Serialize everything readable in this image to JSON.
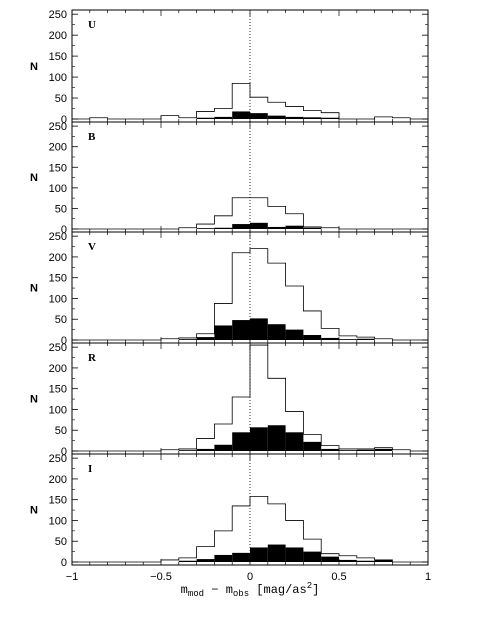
{
  "figure": {
    "y_axis_label": "N",
    "x_label": {
      "m1": "m",
      "sub1": "mod",
      "minus": " − ",
      "m2": "m",
      "sub2": "obs",
      "bracket": " [mag/as",
      "sup": "2",
      "close": "]"
    },
    "x_tick_labels": [
      "−1",
      "−0.5",
      "0",
      "0.5",
      "1"
    ],
    "y_tick_labels": [
      "0",
      "50",
      "100",
      "150",
      "200",
      "250"
    ]
  },
  "chart_data": [
    {
      "type": "bar",
      "label": "U",
      "xlim": [
        -1,
        1
      ],
      "ylim": [
        0,
        260
      ],
      "bin_width": 0.1,
      "bin_starts": [
        -1.0,
        -0.9,
        -0.8,
        -0.7,
        -0.6,
        -0.5,
        -0.4,
        -0.3,
        -0.2,
        -0.1,
        0.0,
        0.1,
        0.2,
        0.3,
        0.4,
        0.5,
        0.6,
        0.7,
        0.8,
        0.9
      ],
      "series": [
        {
          "style": "outline",
          "values": [
            0,
            3,
            0,
            0,
            0,
            8,
            3,
            18,
            25,
            85,
            52,
            40,
            30,
            20,
            15,
            0,
            0,
            5,
            3,
            0
          ]
        },
        {
          "style": "filled",
          "values": [
            0,
            0,
            0,
            0,
            0,
            0,
            0,
            3,
            5,
            18,
            14,
            8,
            5,
            4,
            3,
            0,
            0,
            0,
            0,
            0
          ]
        }
      ],
      "reference_line_x": 0
    },
    {
      "type": "bar",
      "label": "B",
      "xlim": [
        -1,
        1
      ],
      "ylim": [
        0,
        260
      ],
      "bin_width": 0.1,
      "bin_starts": [
        -1.0,
        -0.9,
        -0.8,
        -0.7,
        -0.6,
        -0.5,
        -0.4,
        -0.3,
        -0.2,
        -0.1,
        0.0,
        0.1,
        0.2,
        0.3,
        0.4,
        0.5,
        0.6,
        0.7,
        0.8,
        0.9
      ],
      "series": [
        {
          "style": "outline",
          "values": [
            0,
            0,
            0,
            0,
            0,
            0,
            3,
            12,
            32,
            76,
            76,
            55,
            37,
            5,
            3,
            0,
            0,
            0,
            0,
            0
          ]
        },
        {
          "style": "filled",
          "values": [
            0,
            0,
            0,
            0,
            0,
            0,
            0,
            2,
            3,
            12,
            15,
            5,
            8,
            3,
            0,
            0,
            0,
            0,
            0,
            0
          ]
        }
      ],
      "reference_line_x": 0
    },
    {
      "type": "bar",
      "label": "V",
      "xlim": [
        -1,
        1
      ],
      "ylim": [
        0,
        260
      ],
      "bin_width": 0.1,
      "bin_starts": [
        -1.0,
        -0.9,
        -0.8,
        -0.7,
        -0.6,
        -0.5,
        -0.4,
        -0.3,
        -0.2,
        -0.1,
        0.0,
        0.1,
        0.2,
        0.3,
        0.4,
        0.5,
        0.6,
        0.7,
        0.8,
        0.9
      ],
      "series": [
        {
          "style": "outline",
          "values": [
            0,
            0,
            0,
            0,
            0,
            3,
            5,
            15,
            88,
            210,
            220,
            185,
            130,
            70,
            28,
            10,
            7,
            3,
            0,
            0
          ]
        },
        {
          "style": "filled",
          "values": [
            0,
            0,
            0,
            0,
            0,
            0,
            2,
            7,
            35,
            48,
            52,
            38,
            25,
            12,
            5,
            2,
            3,
            0,
            0,
            0
          ]
        }
      ],
      "reference_line_x": 0
    },
    {
      "type": "bar",
      "label": "R",
      "xlim": [
        -1,
        1
      ],
      "ylim": [
        0,
        260
      ],
      "bin_width": 0.1,
      "bin_starts": [
        -1.0,
        -0.9,
        -0.8,
        -0.7,
        -0.6,
        -0.5,
        -0.4,
        -0.3,
        -0.2,
        -0.1,
        0.0,
        0.1,
        0.2,
        0.3,
        0.4,
        0.5,
        0.6,
        0.7,
        0.8,
        0.9
      ],
      "series": [
        {
          "style": "outline",
          "values": [
            0,
            0,
            0,
            0,
            0,
            3,
            5,
            30,
            65,
            130,
            255,
            175,
            95,
            40,
            13,
            5,
            5,
            8,
            3,
            0
          ]
        },
        {
          "style": "filled",
          "values": [
            0,
            0,
            0,
            0,
            0,
            0,
            2,
            5,
            15,
            45,
            57,
            62,
            45,
            22,
            5,
            2,
            3,
            5,
            0,
            0
          ]
        }
      ],
      "reference_line_x": 0
    },
    {
      "type": "bar",
      "label": "I",
      "xlim": [
        -1,
        1
      ],
      "ylim": [
        0,
        260
      ],
      "bin_width": 0.1,
      "bin_starts": [
        -1.0,
        -0.9,
        -0.8,
        -0.7,
        -0.6,
        -0.5,
        -0.4,
        -0.3,
        -0.2,
        -0.1,
        0.0,
        0.1,
        0.2,
        0.3,
        0.4,
        0.5,
        0.6,
        0.7,
        0.8,
        0.9
      ],
      "series": [
        {
          "style": "outline",
          "values": [
            0,
            0,
            0,
            0,
            0,
            5,
            10,
            37,
            75,
            135,
            158,
            140,
            100,
            55,
            20,
            15,
            10,
            5,
            0,
            0
          ]
        },
        {
          "style": "filled",
          "values": [
            0,
            0,
            0,
            0,
            0,
            0,
            3,
            7,
            17,
            22,
            35,
            42,
            35,
            25,
            13,
            5,
            3,
            5,
            0,
            0
          ]
        }
      ],
      "reference_line_x": 0
    }
  ]
}
